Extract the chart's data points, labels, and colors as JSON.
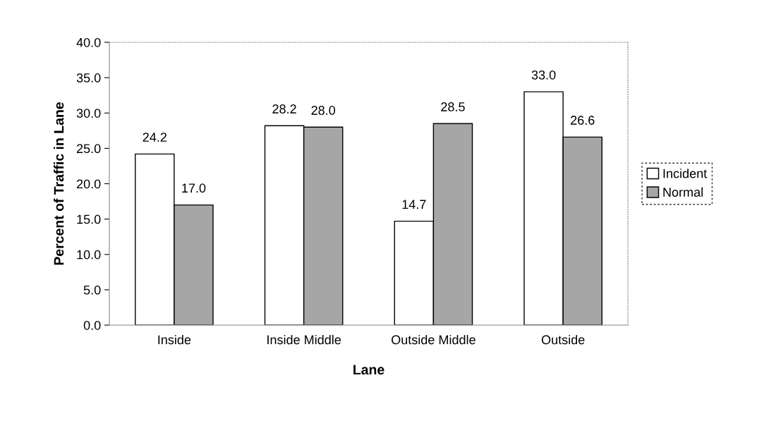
{
  "chart_data": {
    "type": "bar",
    "xlabel": "Lane",
    "ylabel": "Percent of Traffic in Lane",
    "categories": [
      "Inside",
      "Inside Middle",
      "Outside Middle",
      "Outside"
    ],
    "series": [
      {
        "name": "Incident",
        "color": "#ffffff",
        "values": [
          24.2,
          28.2,
          14.7,
          33.0
        ]
      },
      {
        "name": "Normal",
        "color": "#a6a6a6",
        "values": [
          17.0,
          28.0,
          28.5,
          26.6
        ]
      }
    ],
    "value_labels": [
      [
        "24.2",
        "28.2",
        "14.7",
        "33.0"
      ],
      [
        "17.0",
        "28.0",
        "28.5",
        "26.6"
      ]
    ],
    "ylim": [
      0,
      40
    ],
    "yticks": [
      {
        "value": 0,
        "label": "0.0"
      },
      {
        "value": 5,
        "label": "5.0"
      },
      {
        "value": 10,
        "label": "10.0"
      },
      {
        "value": 15,
        "label": "15.0"
      },
      {
        "value": 20,
        "label": "20.0"
      },
      {
        "value": 25,
        "label": "25.0"
      },
      {
        "value": 30,
        "label": "30.0"
      },
      {
        "value": 35,
        "label": "35.0"
      },
      {
        "value": 40,
        "label": "40.0"
      }
    ],
    "legend": "right",
    "grid": false
  }
}
